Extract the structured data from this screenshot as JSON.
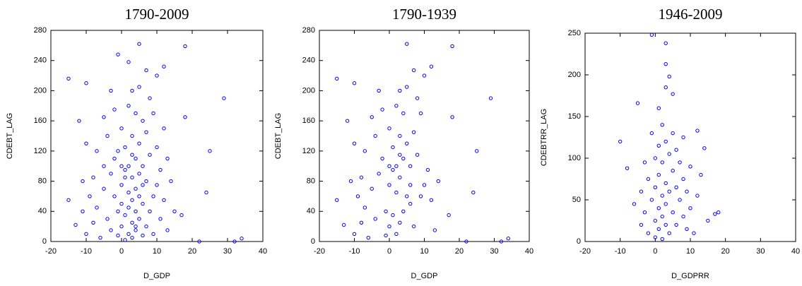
{
  "chart_data": [
    {
      "type": "scatter",
      "title": "1790-2009",
      "x_label": "D_GDP",
      "y_label": "CDEBT_LAG",
      "xlim": [
        -20,
        40
      ],
      "xticks": [
        -20,
        -10,
        0,
        10,
        20,
        30,
        40
      ],
      "ylim": [
        0,
        280
      ],
      "yticks": [
        0,
        40,
        80,
        120,
        160,
        200,
        240,
        280
      ],
      "series": [
        {
          "color": "#0000ff",
          "x": [
            -15,
            -15,
            -13,
            -12,
            -11,
            -11,
            -10,
            -10,
            -10,
            -9,
            -8,
            -8,
            -7,
            -7,
            -6,
            -5,
            -5,
            -5,
            -4,
            -4,
            -3,
            -3,
            -3,
            -2,
            -2,
            -2,
            -1,
            -1,
            -1,
            0,
            0,
            0,
            0,
            1,
            1,
            1,
            1,
            2,
            2,
            2,
            2,
            2,
            3,
            3,
            3,
            3,
            3,
            3,
            4,
            4,
            4,
            4,
            4,
            5,
            5,
            5,
            5,
            5,
            5,
            6,
            6,
            6,
            6,
            7,
            7,
            7,
            7,
            8,
            8,
            8,
            9,
            9,
            9,
            10,
            10,
            10,
            11,
            11,
            12,
            12,
            12,
            13,
            13,
            14,
            15,
            17,
            18,
            18,
            22,
            24,
            25,
            29,
            32,
            34,
            1,
            2,
            3,
            0,
            4,
            6,
            -1
          ],
          "values": [
            216,
            55,
            22,
            160,
            80,
            40,
            210,
            130,
            10,
            60,
            85,
            25,
            120,
            45,
            5,
            165,
            100,
            70,
            140,
            30,
            200,
            90,
            15,
            175,
            60,
            110,
            248,
            40,
            8,
            150,
            75,
            20,
            50,
            125,
            95,
            35,
            2,
            238,
            180,
            65,
            10,
            45,
            200,
            140,
            85,
            55,
            25,
            5,
            170,
            110,
            70,
            40,
            15,
            262,
            205,
            130,
            90,
            60,
            30,
            160,
            100,
            50,
            8,
            227,
            145,
            80,
            20,
            190,
            115,
            40,
            170,
            60,
            10,
            220,
            125,
            75,
            95,
            30,
            232,
            150,
            55,
            110,
            15,
            80,
            40,
            35,
            259,
            165,
            0,
            65,
            120,
            190,
            0,
            4,
            85,
            100,
            115,
            100,
            20,
            75,
            120
          ]
        }
      ]
    },
    {
      "type": "scatter",
      "title": "1790-1939",
      "x_label": "D_GDP",
      "y_label": "CDEBT_LAG",
      "xlim": [
        -20,
        40
      ],
      "xticks": [
        -20,
        -10,
        0,
        10,
        20,
        30,
        40
      ],
      "ylim": [
        0,
        280
      ],
      "yticks": [
        0,
        40,
        80,
        120,
        160,
        200,
        240,
        280
      ],
      "series": [
        {
          "color": "#0000ff",
          "x": [
            -15,
            -15,
            -13,
            -12,
            -11,
            -10,
            -10,
            -10,
            -9,
            -8,
            -8,
            -7,
            -7,
            -6,
            -5,
            -5,
            -4,
            -4,
            -3,
            -3,
            -2,
            -2,
            -1,
            -1,
            0,
            0,
            0,
            1,
            1,
            1,
            2,
            2,
            2,
            3,
            3,
            3,
            3,
            4,
            4,
            4,
            5,
            5,
            5,
            5,
            6,
            6,
            7,
            7,
            7,
            8,
            8,
            9,
            9,
            10,
            10,
            11,
            12,
            12,
            13,
            14,
            17,
            18,
            18,
            22,
            24,
            25,
            29,
            32,
            34,
            2,
            3,
            0,
            6
          ],
          "values": [
            216,
            55,
            22,
            160,
            80,
            210,
            130,
            10,
            60,
            85,
            25,
            120,
            45,
            5,
            165,
            70,
            140,
            30,
            200,
            90,
            175,
            110,
            40,
            8,
            150,
            75,
            20,
            125,
            95,
            35,
            180,
            65,
            10,
            200,
            140,
            85,
            25,
            170,
            110,
            40,
            262,
            205,
            130,
            60,
            100,
            50,
            227,
            145,
            20,
            190,
            115,
            170,
            60,
            220,
            75,
            95,
            232,
            55,
            15,
            80,
            35,
            259,
            165,
            0,
            65,
            120,
            190,
            0,
            4,
            100,
            115,
            100,
            75
          ]
        }
      ]
    },
    {
      "type": "scatter",
      "title": "1946-2009",
      "x_label": "D_GDPRR",
      "y_label": "CDEBTRR_LAG",
      "xlim": [
        -20,
        40
      ],
      "xticks": [
        -20,
        -10,
        0,
        10,
        20,
        30,
        40
      ],
      "ylim": [
        0,
        250
      ],
      "yticks": [
        0,
        50,
        100,
        150,
        200,
        250
      ],
      "series": [
        {
          "color": "#0000ff",
          "x": [
            -10,
            -8,
            -6,
            -5,
            -4,
            -4,
            -3,
            -3,
            -2,
            -2,
            -1,
            -1,
            -1,
            0,
            0,
            0,
            0,
            1,
            1,
            1,
            1,
            1,
            2,
            2,
            2,
            2,
            2,
            3,
            3,
            3,
            3,
            3,
            3,
            3,
            4,
            4,
            4,
            4,
            5,
            5,
            5,
            5,
            6,
            6,
            6,
            7,
            7,
            8,
            8,
            8,
            9,
            9,
            10,
            10,
            11,
            12,
            12,
            13,
            14,
            15,
            17,
            18
          ],
          "values": [
            120,
            88,
            45,
            166,
            60,
            20,
            95,
            35,
            75,
            10,
            248,
            130,
            50,
            100,
            65,
            25,
            5,
            160,
            115,
            80,
            40,
            15,
            140,
            95,
            55,
            30,
            3,
            238,
            213,
            185,
            120,
            70,
            45,
            20,
            198,
            105,
            60,
            10,
            177,
            130,
            85,
            35,
            110,
            65,
            20,
            95,
            50,
            125,
            75,
            30,
            60,
            15,
            90,
            40,
            10,
            133,
            55,
            80,
            112,
            25,
            33,
            35
          ]
        }
      ]
    }
  ]
}
